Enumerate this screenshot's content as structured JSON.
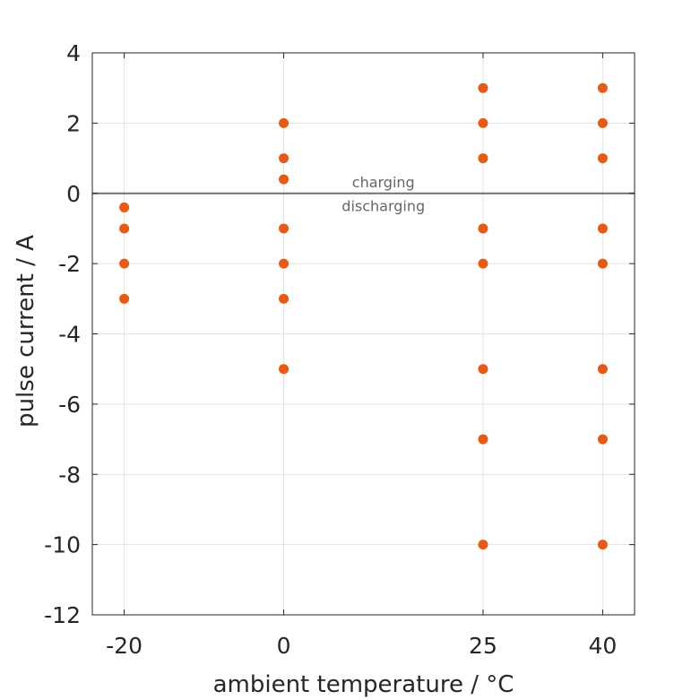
{
  "colors": {
    "marker": "#e85a14",
    "zero_line": "#707070",
    "grid": "#e3e3e3",
    "axis": "#262626",
    "annotation_text": "#666666"
  },
  "chart_data": {
    "type": "scatter",
    "title": "",
    "xlabel": "ambient temperature / °C",
    "ylabel": "pulse current / A",
    "xlim": [
      -24,
      44
    ],
    "ylim": [
      -12,
      4
    ],
    "xticks": [
      -20,
      0,
      25,
      40
    ],
    "xtick_labels": [
      "-20",
      "0",
      "25",
      "40"
    ],
    "yticks": [
      4,
      2,
      0,
      -2,
      -4,
      -6,
      -8,
      -10,
      -12
    ],
    "ytick_labels": [
      "4",
      "2",
      "0",
      "-2",
      "-4",
      "-6",
      "-8",
      "-10",
      "-12"
    ],
    "grid": true,
    "reference_line": {
      "y": 0
    },
    "annotations": [
      {
        "text": "charging",
        "x": 12.5,
        "y": 0.3
      },
      {
        "text": "discharging",
        "x": 12.5,
        "y": -0.35
      }
    ],
    "points": [
      {
        "x": -20,
        "y": -0.4
      },
      {
        "x": -20,
        "y": -1
      },
      {
        "x": -20,
        "y": -2
      },
      {
        "x": -20,
        "y": -3
      },
      {
        "x": 0,
        "y": 2
      },
      {
        "x": 0,
        "y": 1
      },
      {
        "x": 0,
        "y": 0.4
      },
      {
        "x": 0,
        "y": -1
      },
      {
        "x": 0,
        "y": -2
      },
      {
        "x": 0,
        "y": -3
      },
      {
        "x": 0,
        "y": -5
      },
      {
        "x": 25,
        "y": 3
      },
      {
        "x": 25,
        "y": 2
      },
      {
        "x": 25,
        "y": 1
      },
      {
        "x": 25,
        "y": -1
      },
      {
        "x": 25,
        "y": -2
      },
      {
        "x": 25,
        "y": -5
      },
      {
        "x": 25,
        "y": -7
      },
      {
        "x": 25,
        "y": -10
      },
      {
        "x": 40,
        "y": 3
      },
      {
        "x": 40,
        "y": 2
      },
      {
        "x": 40,
        "y": 1
      },
      {
        "x": 40,
        "y": -1
      },
      {
        "x": 40,
        "y": -2
      },
      {
        "x": 40,
        "y": -5
      },
      {
        "x": 40,
        "y": -7
      },
      {
        "x": 40,
        "y": -10
      }
    ]
  }
}
